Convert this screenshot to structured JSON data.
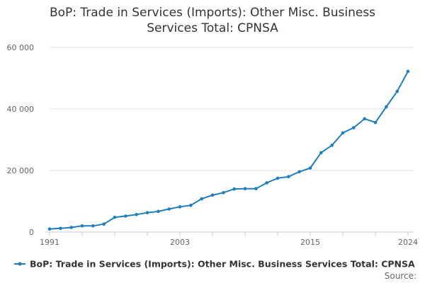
{
  "chart_data": {
    "type": "line",
    "title": "BoP: Trade in Services (Imports): Other Misc. Business Services Total: CPNSA",
    "title_lines": [
      "BoP: Trade in Services (Imports): Other Misc. Business",
      "Services Total: CPNSA"
    ],
    "xlabel": "",
    "ylabel": "",
    "x": [
      1991,
      1992,
      1993,
      1994,
      1995,
      1996,
      1997,
      1998,
      1999,
      2000,
      2001,
      2002,
      2003,
      2004,
      2005,
      2006,
      2007,
      2008,
      2009,
      2010,
      2011,
      2012,
      2013,
      2014,
      2015,
      2016,
      2017,
      2018,
      2019,
      2020,
      2021,
      2022,
      2023,
      2024
    ],
    "series": [
      {
        "name": "BoP: Trade in Services (Imports): Other Misc. Business Services Total: CPNSA",
        "values": [
          1000,
          1200,
          1500,
          2000,
          2000,
          2600,
          4800,
          5200,
          5700,
          6300,
          6700,
          7500,
          8200,
          8700,
          10800,
          12000,
          12800,
          14000,
          14100,
          14100,
          16000,
          17500,
          18000,
          19600,
          20800,
          25800,
          28200,
          32200,
          33900,
          36800,
          35600,
          40700,
          45700,
          52200
        ]
      }
    ],
    "xlim": [
      1991,
      2024
    ],
    "ylim": [
      0,
      60000
    ],
    "x_ticks": [
      1991,
      2003,
      2015,
      2024
    ],
    "y_ticks": [
      0,
      20000,
      40000,
      60000
    ],
    "y_tick_labels": [
      "0",
      "20 000",
      "40 000",
      "60 000"
    ],
    "grid": true,
    "legend_position": "bottom",
    "source_label": "Source:",
    "colors": {
      "series": "#1f7fbd",
      "grid": "#e6e6e6",
      "axis": "#cccccc"
    }
  }
}
